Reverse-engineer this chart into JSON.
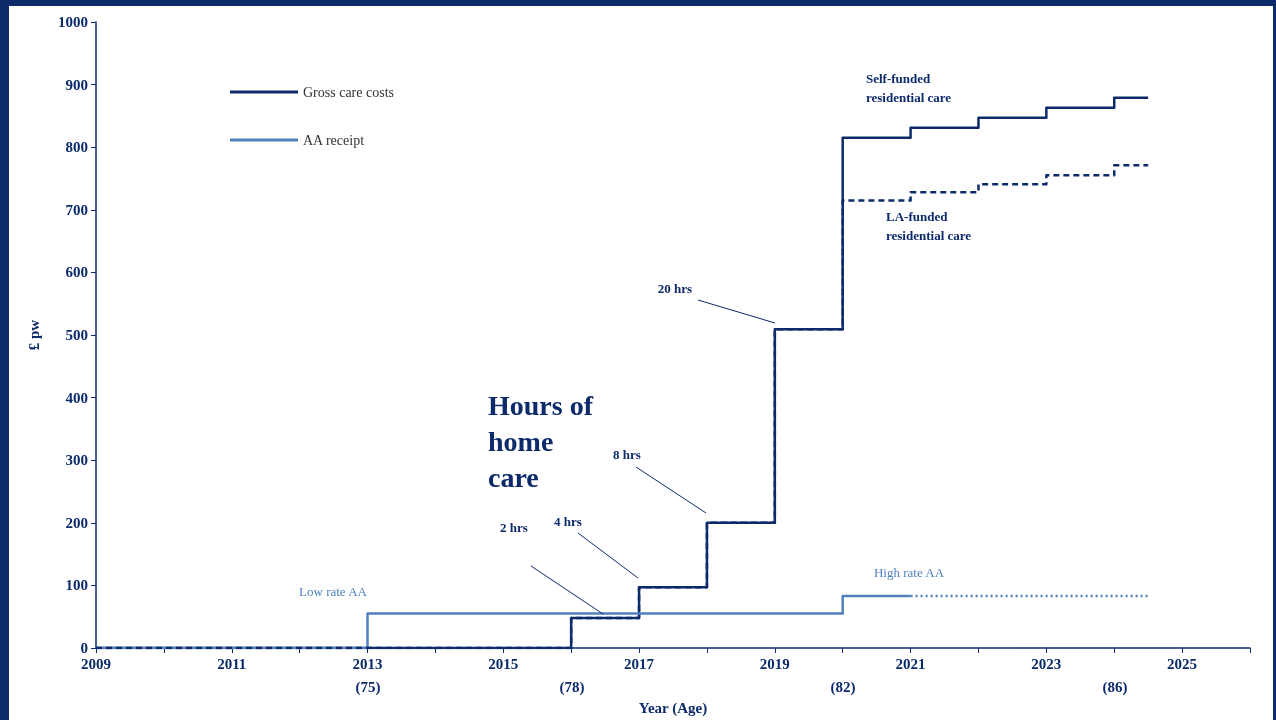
{
  "chart_data": {
    "type": "step",
    "xlabel": "Year (Age)",
    "ylabel": "£ pw",
    "xlim": [
      2009,
      2026
    ],
    "ylim": [
      0,
      1000
    ],
    "xticks": [
      2009,
      {
        "value": 2010,
        "label": null
      },
      2011,
      {
        "value": 2012,
        "label": null
      },
      2013,
      {
        "value": 2014,
        "label": null
      },
      2015,
      {
        "value": 2016,
        "label": null
      },
      2017,
      {
        "value": 2018,
        "label": null
      },
      2019,
      {
        "value": 2020,
        "label": null
      },
      2021,
      {
        "value": 2022,
        "label": null
      },
      2023,
      {
        "value": 2024,
        "label": null
      },
      2025,
      {
        "value": 2026,
        "label": null
      }
    ],
    "yticks": [
      0,
      100,
      200,
      300,
      400,
      500,
      600,
      700,
      800,
      900,
      1000
    ],
    "grid": false,
    "legend": "top left",
    "marker": "none",
    "series": [
      {
        "name": "Gross care costs",
        "color": "#0d2a6b",
        "line_style": "solid",
        "x": [
          2009,
          2016,
          2017,
          2018,
          2019,
          2020,
          2021,
          2022,
          2023,
          2024,
          2024.5
        ],
        "values": [
          0,
          48,
          97,
          200,
          509,
          815,
          831,
          847,
          863,
          879,
          879
        ]
      },
      {
        "color": "#0d2a6b",
        "line_style": "dashed",
        "x": [
          2009,
          2016,
          2017,
          2018,
          2019,
          2020,
          2021,
          2022,
          2023,
          2024,
          2024.5
        ],
        "values": [
          0,
          48,
          97,
          200,
          509,
          715,
          728,
          741,
          755,
          771,
          771
        ]
      },
      {
        "name": "AA receipt",
        "color": "#4f81bd",
        "line_style": "solid",
        "x": [
          2009,
          2013,
          2020,
          2021
        ],
        "values": [
          0,
          55,
          83,
          83
        ]
      },
      {
        "color": "#4f81bd",
        "line_style": "dotted",
        "x": [
          2021,
          2024.5
        ],
        "values": [
          83,
          83
        ]
      }
    ],
    "annotations": [
      "Self-funded\nresidential care",
      "LA-funded\nresidential care",
      "Hours of\nhome\ncare",
      "2 hrs",
      "4 hrs",
      "8 hrs",
      "20 hrs",
      "Low rate AA",
      "High rate AA",
      "(75)",
      "(78)",
      "(82)",
      "(86)"
    ]
  }
}
